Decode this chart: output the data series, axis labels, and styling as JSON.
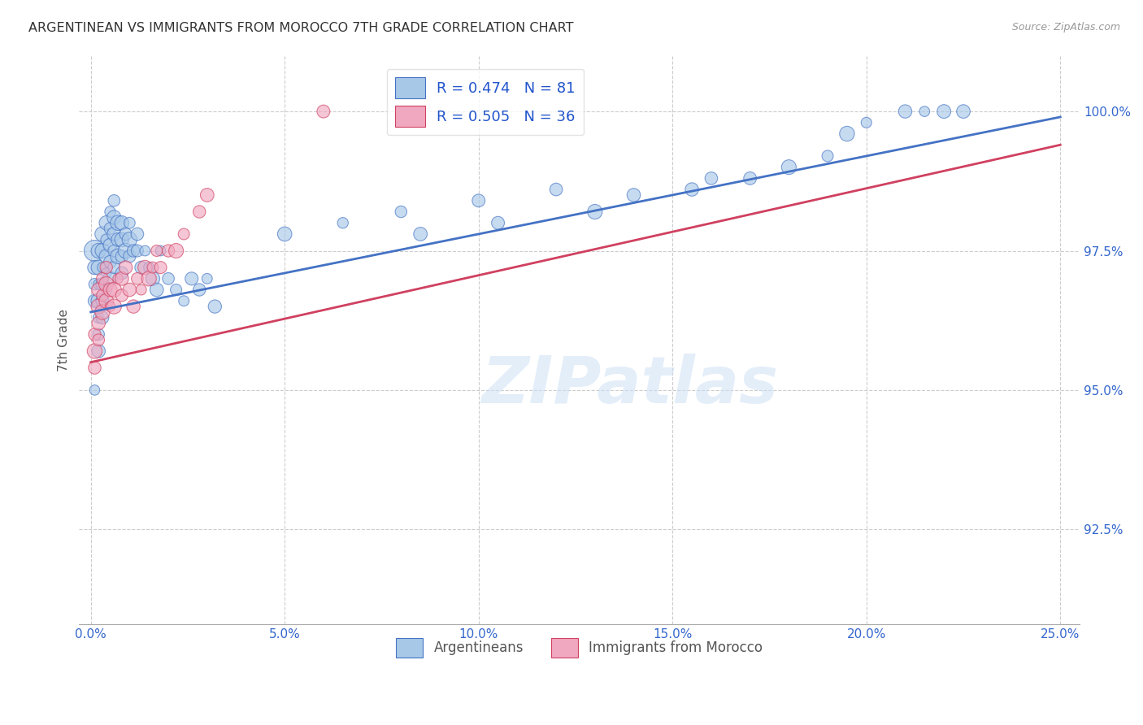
{
  "title": "ARGENTINEAN VS IMMIGRANTS FROM MOROCCO 7TH GRADE CORRELATION CHART",
  "source": "Source: ZipAtlas.com",
  "ylabel": "7th Grade",
  "ytick_labels": [
    "100.0%",
    "97.5%",
    "95.0%",
    "92.5%"
  ],
  "ytick_values": [
    1.0,
    0.975,
    0.95,
    0.925
  ],
  "xtick_values": [
    0.0,
    0.05,
    0.1,
    0.15,
    0.2,
    0.25
  ],
  "xtick_labels": [
    "0.0%",
    "5.0%",
    "10.0%",
    "15.0%",
    "20.0%",
    "25.0%"
  ],
  "xlim": [
    -0.003,
    0.255
  ],
  "ylim": [
    0.908,
    1.01
  ],
  "blue_R": 0.474,
  "blue_N": 81,
  "pink_R": 0.505,
  "pink_N": 36,
  "blue_color": "#a8c8e8",
  "pink_color": "#f0a8c0",
  "blue_line_color": "#4472c4",
  "pink_line_color": "#d04060",
  "legend_blue_label": "R = 0.474   N = 81",
  "legend_pink_label": "R = 0.505   N = 36",
  "watermark": "ZIPatlas",
  "legend_label_arg": "Argentineans",
  "legend_label_imm": "Immigrants from Morocco",
  "blue_scatter_x": [
    0.001,
    0.001,
    0.001,
    0.001,
    0.001,
    0.002,
    0.002,
    0.002,
    0.002,
    0.002,
    0.002,
    0.002,
    0.003,
    0.003,
    0.003,
    0.003,
    0.003,
    0.003,
    0.004,
    0.004,
    0.004,
    0.004,
    0.004,
    0.005,
    0.005,
    0.005,
    0.005,
    0.005,
    0.006,
    0.006,
    0.006,
    0.006,
    0.006,
    0.007,
    0.007,
    0.007,
    0.008,
    0.008,
    0.008,
    0.008,
    0.009,
    0.009,
    0.01,
    0.01,
    0.01,
    0.011,
    0.012,
    0.012,
    0.013,
    0.014,
    0.015,
    0.016,
    0.017,
    0.018,
    0.02,
    0.022,
    0.024,
    0.026,
    0.028,
    0.03,
    0.032,
    0.05,
    0.065,
    0.08,
    0.085,
    0.1,
    0.105,
    0.12,
    0.13,
    0.14,
    0.155,
    0.16,
    0.17,
    0.18,
    0.19,
    0.195,
    0.2,
    0.21,
    0.215,
    0.22,
    0.225
  ],
  "blue_scatter_y": [
    0.975,
    0.972,
    0.969,
    0.966,
    0.95,
    0.975,
    0.972,
    0.969,
    0.966,
    0.963,
    0.96,
    0.957,
    0.978,
    0.975,
    0.972,
    0.969,
    0.966,
    0.963,
    0.98,
    0.977,
    0.974,
    0.971,
    0.968,
    0.982,
    0.979,
    0.976,
    0.973,
    0.97,
    0.984,
    0.981,
    0.978,
    0.975,
    0.972,
    0.98,
    0.977,
    0.974,
    0.98,
    0.977,
    0.974,
    0.971,
    0.978,
    0.975,
    0.98,
    0.977,
    0.974,
    0.975,
    0.978,
    0.975,
    0.972,
    0.975,
    0.972,
    0.97,
    0.968,
    0.975,
    0.97,
    0.968,
    0.966,
    0.97,
    0.968,
    0.97,
    0.965,
    0.978,
    0.98,
    0.982,
    0.978,
    0.984,
    0.98,
    0.986,
    0.982,
    0.985,
    0.986,
    0.988,
    0.988,
    0.99,
    0.992,
    0.996,
    0.998,
    1.0,
    1.0,
    1.0,
    1.0
  ],
  "pink_scatter_x": [
    0.001,
    0.001,
    0.001,
    0.002,
    0.002,
    0.002,
    0.002,
    0.003,
    0.003,
    0.003,
    0.004,
    0.004,
    0.004,
    0.005,
    0.005,
    0.006,
    0.006,
    0.007,
    0.008,
    0.008,
    0.009,
    0.01,
    0.011,
    0.012,
    0.013,
    0.014,
    0.015,
    0.016,
    0.017,
    0.018,
    0.02,
    0.022,
    0.024,
    0.028,
    0.03,
    0.06
  ],
  "pink_scatter_y": [
    0.96,
    0.957,
    0.954,
    0.968,
    0.965,
    0.962,
    0.959,
    0.97,
    0.967,
    0.964,
    0.972,
    0.969,
    0.966,
    0.968,
    0.965,
    0.968,
    0.965,
    0.97,
    0.97,
    0.967,
    0.972,
    0.968,
    0.965,
    0.97,
    0.968,
    0.972,
    0.97,
    0.972,
    0.975,
    0.972,
    0.975,
    0.975,
    0.978,
    0.982,
    0.985,
    1.0
  ],
  "blue_line_x0": 0.0,
  "blue_line_y0": 0.964,
  "blue_line_x1": 0.25,
  "blue_line_y1": 0.999,
  "pink_line_x0": 0.0,
  "pink_line_y0": 0.955,
  "pink_line_x1": 0.25,
  "pink_line_y1": 0.994
}
